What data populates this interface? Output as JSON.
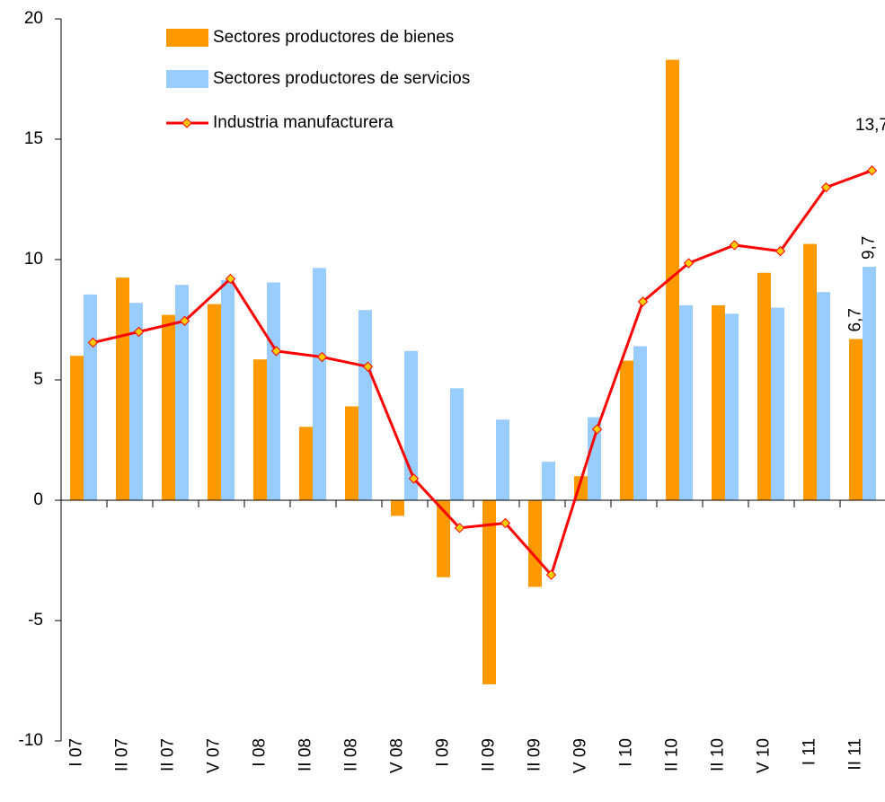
{
  "chart_data": {
    "type": "bar-line",
    "categories": [
      "I 07",
      "II 07",
      "II 07",
      "V 07",
      "I 08",
      "II 08",
      "II 08",
      "V 08",
      "I 09",
      "II 09",
      "II 09",
      "V 09",
      "I 10",
      "II 10",
      "II 10",
      "V 10",
      "I 11",
      "II 11"
    ],
    "series": [
      {
        "name": "Sectores productores de bienes",
        "type": "bar",
        "color": "#ff9900",
        "values": [
          6.0,
          9.25,
          7.7,
          8.15,
          5.85,
          3.05,
          3.9,
          -0.65,
          -3.2,
          -7.65,
          -3.6,
          1.0,
          5.8,
          18.3,
          8.1,
          9.45,
          10.65,
          6.7
        ],
        "value_labels": [
          null,
          null,
          null,
          null,
          null,
          null,
          null,
          null,
          null,
          null,
          null,
          null,
          null,
          null,
          null,
          null,
          null,
          "6,7"
        ]
      },
      {
        "name": "Sectores productores de servicios",
        "type": "bar",
        "color": "#99ccff",
        "values": [
          8.55,
          8.2,
          8.95,
          9.15,
          9.05,
          9.65,
          7.9,
          6.2,
          4.65,
          3.35,
          1.6,
          3.45,
          6.4,
          8.1,
          7.75,
          8.0,
          8.65,
          9.7
        ],
        "value_labels": [
          null,
          null,
          null,
          null,
          null,
          null,
          null,
          null,
          null,
          null,
          null,
          null,
          null,
          null,
          null,
          null,
          null,
          "9,7"
        ]
      },
      {
        "name": "Industria manufacturera",
        "type": "line",
        "color": "#ff0000",
        "marker_color": "#ffcc00",
        "values": [
          6.55,
          7.0,
          7.45,
          9.2,
          6.2,
          5.95,
          5.55,
          0.9,
          -1.15,
          -0.95,
          -3.1,
          2.95,
          8.25,
          9.85,
          10.6,
          10.35,
          13.0,
          13.7
        ],
        "value_labels": [
          null,
          null,
          null,
          null,
          null,
          null,
          null,
          null,
          null,
          null,
          null,
          null,
          null,
          null,
          null,
          null,
          null,
          "13,7"
        ]
      }
    ],
    "ylim": [
      -10,
      20
    ],
    "yticks": [
      -10,
      -5,
      0,
      5,
      10,
      15,
      20
    ],
    "grid": false,
    "legend": "top-left"
  }
}
